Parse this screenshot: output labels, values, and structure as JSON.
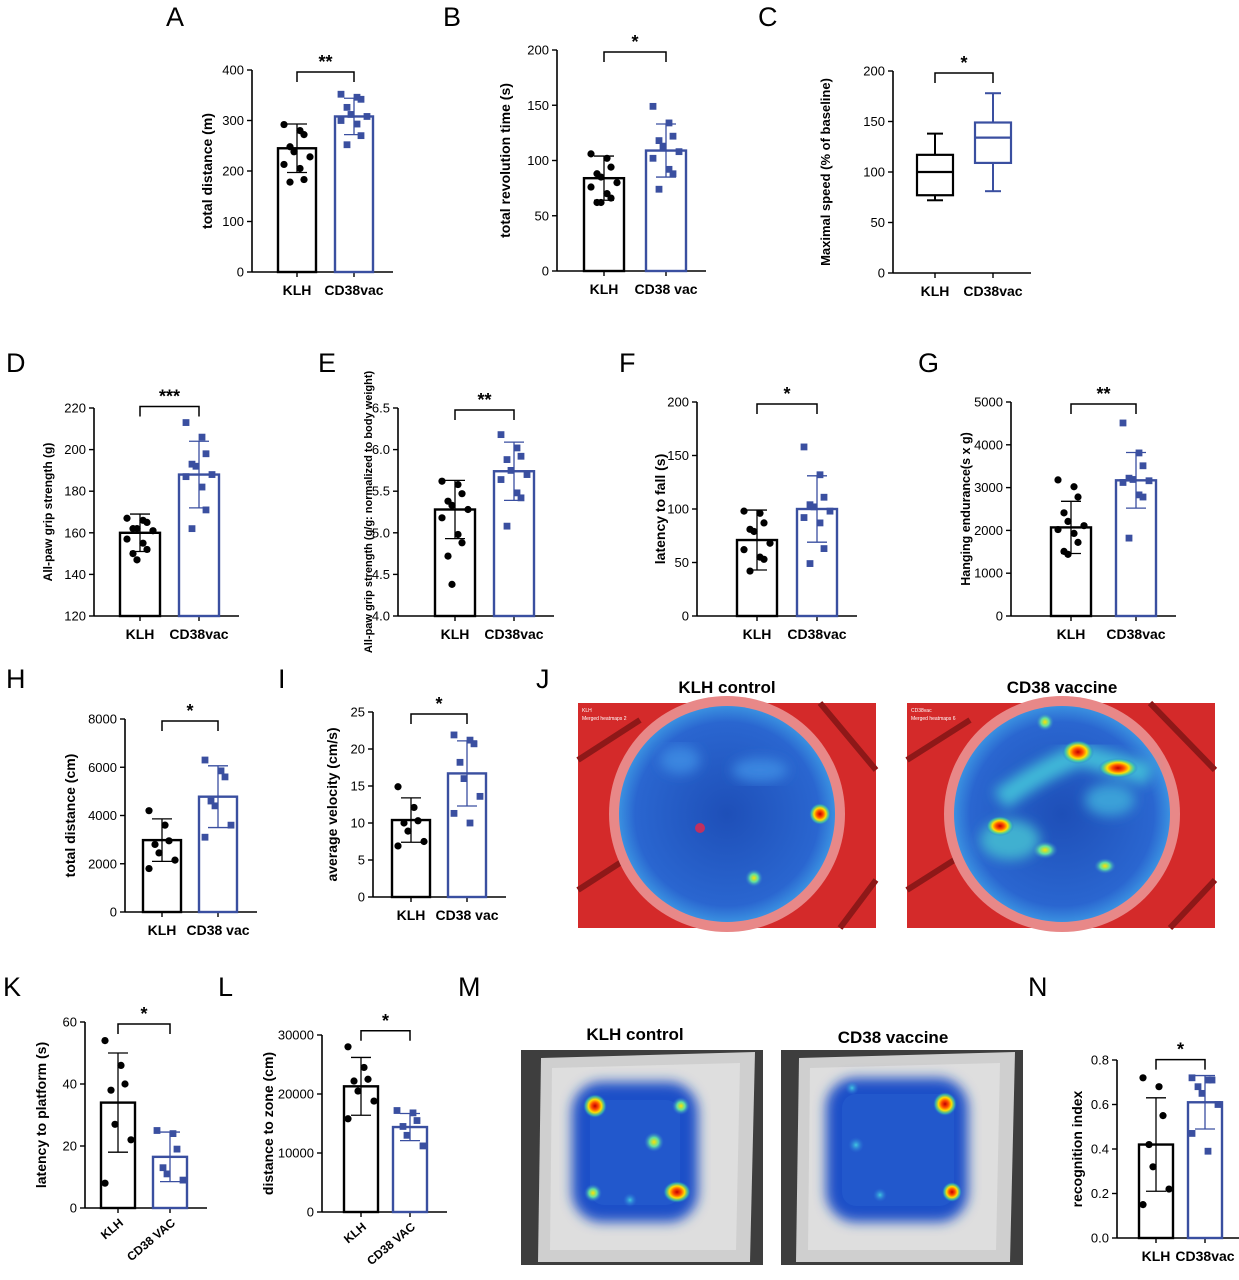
{
  "colors": {
    "klh": "#000000",
    "cd38": "#3a4fa0"
  },
  "chart_data": [
    {
      "panel": "A",
      "type": "bar",
      "ylabel": "total distance (m)",
      "ylim": [
        0,
        400
      ],
      "ticks": [
        "0",
        "100",
        "200",
        "300",
        "400"
      ],
      "categories": [
        "KLH",
        "CD38vac"
      ],
      "sig": "**",
      "series": [
        {
          "mean": 245,
          "sd": 48,
          "points": [
            292,
            280,
            272,
            248,
            238,
            228,
            213,
            205,
            183,
            178
          ]
        },
        {
          "mean": 308,
          "sd": 36,
          "points": [
            352,
            346,
            342,
            326,
            312,
            308,
            300,
            293,
            270,
            252
          ]
        }
      ]
    },
    {
      "panel": "B",
      "type": "bar",
      "ylabel": "total revolution time (s)",
      "ylim": [
        0,
        200
      ],
      "ticks": [
        "0",
        "50",
        "100",
        "150",
        "200"
      ],
      "categories": [
        "KLH",
        "CD38 vac"
      ],
      "sig": "*",
      "series": [
        {
          "mean": 84,
          "sd": 20,
          "points": [
            106,
            102,
            94,
            88,
            85,
            80,
            76,
            70,
            66,
            62,
            62
          ]
        },
        {
          "mean": 109,
          "sd": 24,
          "points": [
            149,
            134,
            122,
            118,
            113,
            108,
            102,
            92,
            88,
            74
          ]
        }
      ]
    },
    {
      "panel": "C",
      "type": "box",
      "ylabel": "Maximal speed (% of baseline)",
      "ylim": [
        0,
        200
      ],
      "ticks": [
        "0",
        "50",
        "100",
        "150",
        "200"
      ],
      "categories": [
        "KLH",
        "CD38vac"
      ],
      "sig": "*",
      "series": [
        {
          "min": 72,
          "q1": 77,
          "median": 100,
          "q3": 117,
          "max": 138
        },
        {
          "min": 81,
          "q1": 109,
          "median": 134,
          "q3": 149,
          "max": 178
        }
      ]
    },
    {
      "panel": "D",
      "type": "bar",
      "ylabel": "All-paw grip strength (g)",
      "ylim": [
        120,
        220
      ],
      "ticks": [
        "120",
        "140",
        "160",
        "180",
        "200",
        "220"
      ],
      "categories": [
        "KLH",
        "CD38vac"
      ],
      "sig": "***",
      "series": [
        {
          "mean": 160,
          "sd": 9,
          "points": [
            167,
            166,
            165,
            162,
            162,
            161,
            157,
            155,
            152,
            150,
            147
          ]
        },
        {
          "mean": 188,
          "sd": 16,
          "points": [
            213,
            206,
            198,
            193,
            192,
            188,
            187,
            182,
            171,
            162
          ]
        }
      ]
    },
    {
      "panel": "E",
      "type": "bar",
      "ylabel": "All-paw grip strength (g/g: normalized to body weight)",
      "ylim": [
        4.0,
        6.5
      ],
      "ticks": [
        "4.0",
        "4.5",
        "5.0",
        "5.5",
        "6.0",
        "6.5"
      ],
      "categories": [
        "KLH",
        "CD38vac"
      ],
      "sig": "**",
      "series": [
        {
          "mean": 5.28,
          "sd": 0.35,
          "points": [
            5.62,
            5.58,
            5.47,
            5.38,
            5.33,
            5.28,
            5.18,
            4.98,
            4.88,
            4.72,
            4.38
          ]
        },
        {
          "mean": 5.74,
          "sd": 0.35,
          "points": [
            6.18,
            6.02,
            5.92,
            5.88,
            5.75,
            5.7,
            5.64,
            5.48,
            5.42,
            5.08
          ]
        }
      ]
    },
    {
      "panel": "F",
      "type": "bar",
      "ylabel": "latency to fall (s)",
      "ylim": [
        0,
        200
      ],
      "ticks": [
        "0",
        "50",
        "100",
        "150",
        "200"
      ],
      "categories": [
        "KLH",
        "CD38vac"
      ],
      "sig": "*",
      "series": [
        {
          "mean": 71,
          "sd": 28,
          "points": [
            98,
            96,
            87,
            81,
            79,
            68,
            62,
            55,
            53,
            42
          ]
        },
        {
          "mean": 100,
          "sd": 31,
          "points": [
            158,
            132,
            111,
            104,
            102,
            98,
            92,
            87,
            63,
            49
          ]
        }
      ]
    },
    {
      "panel": "G",
      "type": "bar",
      "ylabel": "Hanging endurance(s x g)",
      "ylim": [
        0,
        5000
      ],
      "ticks": [
        "0",
        "1000",
        "2000",
        "3000",
        "4000",
        "5000"
      ],
      "categories": [
        "KLH",
        "CD38vac"
      ],
      "sig": "**",
      "series": [
        {
          "mean": 2070,
          "sd": 610,
          "points": [
            3180,
            3020,
            2780,
            2410,
            2210,
            2110,
            2020,
            1930,
            1720,
            1510,
            1440
          ]
        },
        {
          "mean": 3170,
          "sd": 650,
          "points": [
            4510,
            3810,
            3510,
            3220,
            3190,
            3160,
            3120,
            2830,
            2780,
            1820
          ]
        }
      ]
    },
    {
      "panel": "H",
      "type": "bar",
      "ylabel": "total distance (cm)",
      "ylim": [
        0,
        8000
      ],
      "ticks": [
        "0",
        "2000",
        "4000",
        "6000",
        "8000"
      ],
      "categories": [
        "KLH",
        "CD38 vac"
      ],
      "sig": "*",
      "series": [
        {
          "mean": 2980,
          "sd": 880,
          "points": [
            4200,
            3600,
            2950,
            2800,
            2450,
            2150,
            1800
          ]
        },
        {
          "mean": 4780,
          "sd": 1280,
          "points": [
            6300,
            5850,
            5600,
            4600,
            4400,
            3600,
            3100
          ]
        }
      ]
    },
    {
      "panel": "I",
      "type": "bar",
      "ylabel": "average velocity (cm/s)",
      "ylim": [
        0,
        25
      ],
      "ticks": [
        "0",
        "5",
        "10",
        "15",
        "20",
        "25"
      ],
      "categories": [
        "KLH",
        "CD38 vac"
      ],
      "sig": "*",
      "series": [
        {
          "mean": 10.4,
          "sd": 3.0,
          "points": [
            14.9,
            12.1,
            10.3,
            10.0,
            8.9,
            7.5,
            6.9
          ]
        },
        {
          "mean": 16.7,
          "sd": 4.4,
          "points": [
            21.9,
            21.2,
            20.7,
            18.2,
            16.0,
            13.6,
            11.3,
            10.0
          ]
        }
      ]
    },
    {
      "panel": "K",
      "type": "bar",
      "ylabel": "latency to platform (s)",
      "ylim": [
        0,
        60
      ],
      "ticks": [
        "0",
        "20",
        "40",
        "60"
      ],
      "categories": [
        "KLH",
        "CD38 VAC"
      ],
      "sig": "*",
      "series": [
        {
          "mean": 34,
          "sd": 16,
          "points": [
            54,
            46,
            40,
            38,
            27,
            22,
            8
          ]
        },
        {
          "mean": 16.5,
          "sd": 8,
          "points": [
            25,
            24,
            19,
            13,
            11,
            9
          ]
        }
      ]
    },
    {
      "panel": "L",
      "type": "bar",
      "ylabel": "distance to zone (cm)",
      "ylim": [
        0,
        30000
      ],
      "ticks": [
        "0",
        "10000",
        "20000",
        "30000"
      ],
      "categories": [
        "KLH",
        "CD38 VAC"
      ],
      "sig": "*",
      "series": [
        {
          "mean": 21300,
          "sd": 4900,
          "points": [
            28000,
            24500,
            22500,
            22200,
            20500,
            18800,
            15800
          ]
        },
        {
          "mean": 14400,
          "sd": 2300,
          "points": [
            17200,
            16800,
            15500,
            14500,
            13000,
            11200
          ]
        }
      ]
    },
    {
      "panel": "N",
      "type": "bar",
      "ylabel": "recognition index",
      "ylim": [
        0.0,
        0.8
      ],
      "ticks": [
        "0.0",
        "0.2",
        "0.4",
        "0.6",
        "0.8"
      ],
      "categories": [
        "KLH",
        "CD38vac"
      ],
      "sig": "*",
      "series": [
        {
          "mean": 0.42,
          "sd": 0.21,
          "points": [
            0.72,
            0.68,
            0.55,
            0.42,
            0.32,
            0.22,
            0.15
          ]
        },
        {
          "mean": 0.61,
          "sd": 0.12,
          "points": [
            0.72,
            0.71,
            0.71,
            0.68,
            0.65,
            0.6,
            0.47,
            0.39
          ]
        }
      ]
    }
  ],
  "panel_letters": [
    "A",
    "B",
    "C",
    "D",
    "E",
    "F",
    "G",
    "H",
    "I",
    "J",
    "K",
    "L",
    "M",
    "N"
  ],
  "heatmaps": {
    "J": {
      "left_title": "KLH control",
      "right_title": "CD38 vaccine",
      "left_tag": "KLH",
      "left_sub": "Merged heatmaps 2",
      "right_tag": "CD38vac",
      "right_sub": "Merged heatmaps 6"
    },
    "M": {
      "left_title": "KLH control",
      "right_title": "CD38 vaccine"
    }
  }
}
